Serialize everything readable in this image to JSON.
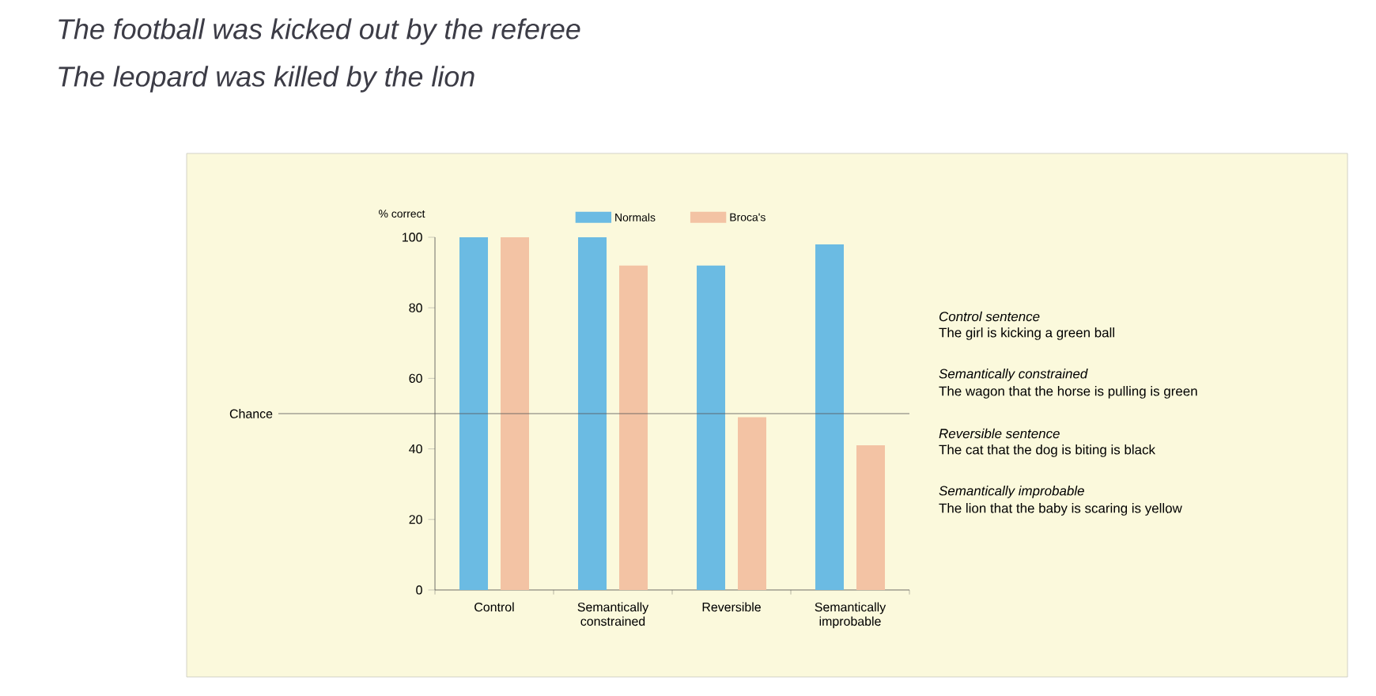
{
  "chart_data": {
    "type": "bar",
    "ylabel": "% correct",
    "categories": [
      "Control",
      "Semantically constrained",
      "Reversible",
      "Semantically improbable"
    ],
    "series": [
      {
        "name": "Normals",
        "color": "#6bbbe3",
        "values": [
          100,
          100,
          92,
          98
        ]
      },
      {
        "name": "Broca's",
        "color": "#f3c3a4",
        "values": [
          100,
          92,
          49,
          41
        ]
      }
    ],
    "ylim": [
      0,
      100
    ],
    "yticks": [
      0,
      20,
      40,
      60,
      80,
      100
    ],
    "ref_lines": [
      {
        "axis": "y",
        "value": 50,
        "label": "Chance",
        "color": "#555555"
      }
    ],
    "legend": "top",
    "annotations": [
      "The football was kicked out by the referee",
      "The leopard was killed by the lion",
      "Control sentence",
      "The girl is kicking a green ball",
      "Semantically constrained",
      "The wagon that the horse is pulling is green",
      "Reversible sentence",
      "The cat that the dog is biting is black",
      "Semantically improbable",
      "The lion that the baby is scaring is yellow"
    ]
  }
}
